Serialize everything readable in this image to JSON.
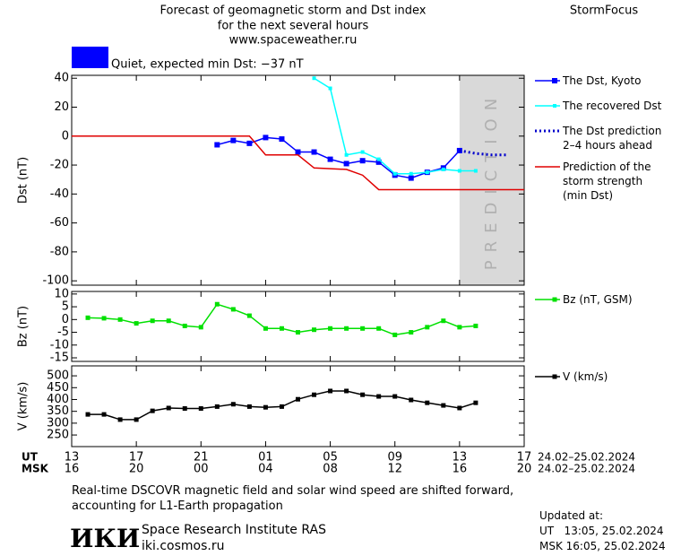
{
  "header": {
    "title_lines": [
      "Forecast of geomagnetic storm and Dst index",
      "for the next several hours",
      "www.spaceweather.ru"
    ],
    "brand": "StormFocus",
    "status": "Quiet, expected min Dst: −37 nT",
    "status_color": "#0000ff"
  },
  "chart_data": [
    {
      "type": "line",
      "y_label": "Dst (nT)",
      "xlim": [
        0,
        28
      ],
      "xticks": [
        0,
        4,
        8,
        12,
        16,
        20,
        24,
        28
      ],
      "ylim": [
        -103,
        42
      ],
      "yticks": [
        40,
        20,
        0,
        -20,
        -40,
        -60,
        -80,
        -100
      ],
      "prediction_region": {
        "x": [
          24,
          28
        ],
        "label": "PREDICTION",
        "color": "#d9d9d9"
      },
      "series": [
        {
          "name": "The Dst, Kyoto",
          "color": "#0000ff",
          "style": "solid",
          "marker": 6,
          "x": [
            9,
            10,
            11,
            12,
            13,
            14,
            15,
            16,
            17,
            18,
            19,
            20,
            21,
            22,
            23,
            24
          ],
          "values": [
            -6,
            -3,
            -5,
            -1,
            -2,
            -11,
            -11,
            -16,
            -19,
            -17,
            -18,
            -27,
            -29,
            -25,
            -22,
            -10
          ]
        },
        {
          "name": "The recovered Dst",
          "color": "#00ffff",
          "style": "solid",
          "marker": 4,
          "x": [
            15,
            16,
            17,
            18,
            19,
            20,
            21,
            22,
            23,
            24,
            25
          ],
          "values": [
            40,
            33,
            -13,
            -11,
            -16,
            -26,
            -26,
            -25,
            -23,
            -24,
            -24
          ]
        },
        {
          "name": "The Dst prediction 2–4 hours ahead",
          "color": "#0000cc",
          "style": "dotted",
          "marker": 0,
          "x": [
            24,
            25,
            26,
            27
          ],
          "values": [
            -10,
            -12,
            -13,
            -13
          ]
        },
        {
          "name": "Prediction of the storm strength (min Dst)",
          "color": "#e00000",
          "style": "solid",
          "marker": 0,
          "x": [
            0,
            11,
            12,
            14,
            15,
            17,
            18,
            19,
            28
          ],
          "values": [
            0,
            0,
            -13,
            -13,
            -22,
            -23,
            -27,
            -37,
            -37
          ]
        }
      ]
    },
    {
      "type": "line",
      "y_label": "Bz (nT)",
      "xlim": [
        0,
        28
      ],
      "xticks": [
        0,
        4,
        8,
        12,
        16,
        20,
        24,
        28
      ],
      "ylim": [
        -16.4,
        11
      ],
      "yticks": [
        10,
        5,
        0,
        -5,
        -10,
        -15
      ],
      "series": [
        {
          "name": "Bz (nT, GSM)",
          "color": "#00e000",
          "style": "solid",
          "marker": 5,
          "x": [
            1,
            2,
            3,
            4,
            5,
            6,
            7,
            8,
            9,
            10,
            11,
            12,
            13,
            14,
            15,
            16,
            17,
            18,
            19,
            20,
            21,
            22,
            23,
            24,
            25
          ],
          "values": [
            0.7,
            0.5,
            0,
            -1.5,
            -0.5,
            -0.5,
            -2.5,
            -3,
            6,
            4,
            1.5,
            -3.5,
            -3.5,
            -5,
            -4,
            -3.5,
            -3.5,
            -3.5,
            -3.5,
            -6,
            -5,
            -3,
            -0.5,
            -3,
            -2.5
          ]
        }
      ]
    },
    {
      "type": "line",
      "y_label": "V (km/s)",
      "xlim": [
        0,
        28
      ],
      "xticks": [
        {
          "value": 0,
          "label": "13"
        },
        {
          "value": 4,
          "label": "17"
        },
        {
          "value": 8,
          "label": "21"
        },
        {
          "value": 12,
          "label": "01"
        },
        {
          "value": 16,
          "label": "05"
        },
        {
          "value": 20,
          "label": "09"
        },
        {
          "value": 24,
          "label": "13"
        },
        {
          "value": 28,
          "label": "17"
        }
      ],
      "xticks_msk": [
        {
          "value": 0,
          "label": "16"
        },
        {
          "value": 4,
          "label": "20"
        },
        {
          "value": 8,
          "label": "00"
        },
        {
          "value": 12,
          "label": "04"
        },
        {
          "value": 16,
          "label": "08"
        },
        {
          "value": 20,
          "label": "12"
        },
        {
          "value": 24,
          "label": "16"
        },
        {
          "value": 28,
          "label": "20"
        }
      ],
      "x_label_ut": "UT",
      "x_label_msk": "MSK",
      "date_range": "24.02–25.02.2024",
      "ylim": [
        201,
        542
      ],
      "yticks": [
        500,
        450,
        400,
        350,
        300,
        250
      ],
      "series": [
        {
          "name": "V (km/s)",
          "color": "#000000",
          "style": "solid",
          "marker": 5,
          "x": [
            1,
            2,
            3,
            4,
            5,
            6,
            7,
            8,
            9,
            10,
            11,
            12,
            13,
            14,
            15,
            16,
            17,
            18,
            19,
            20,
            21,
            22,
            23,
            24,
            25
          ],
          "values": [
            337,
            337,
            315,
            315,
            352,
            364,
            362,
            362,
            370,
            380,
            370,
            367,
            370,
            401,
            420,
            436,
            436,
            420,
            413,
            413,
            398,
            386,
            375,
            364,
            386
          ]
        }
      ]
    }
  ],
  "footer": {
    "note": "Real-time DSCOVR magnetic field and solar wind speed are shifted forward, accounting for L1-Earth propagation",
    "logo": "ИКИ",
    "org": "Space Research Institute RAS",
    "url": "iki.cosmos.ru",
    "updated_label": "Updated at:",
    "updated_ut": "UT   13:05, 25.02.2024",
    "updated_msk": "MSK 16:05, 25.02.2024"
  }
}
